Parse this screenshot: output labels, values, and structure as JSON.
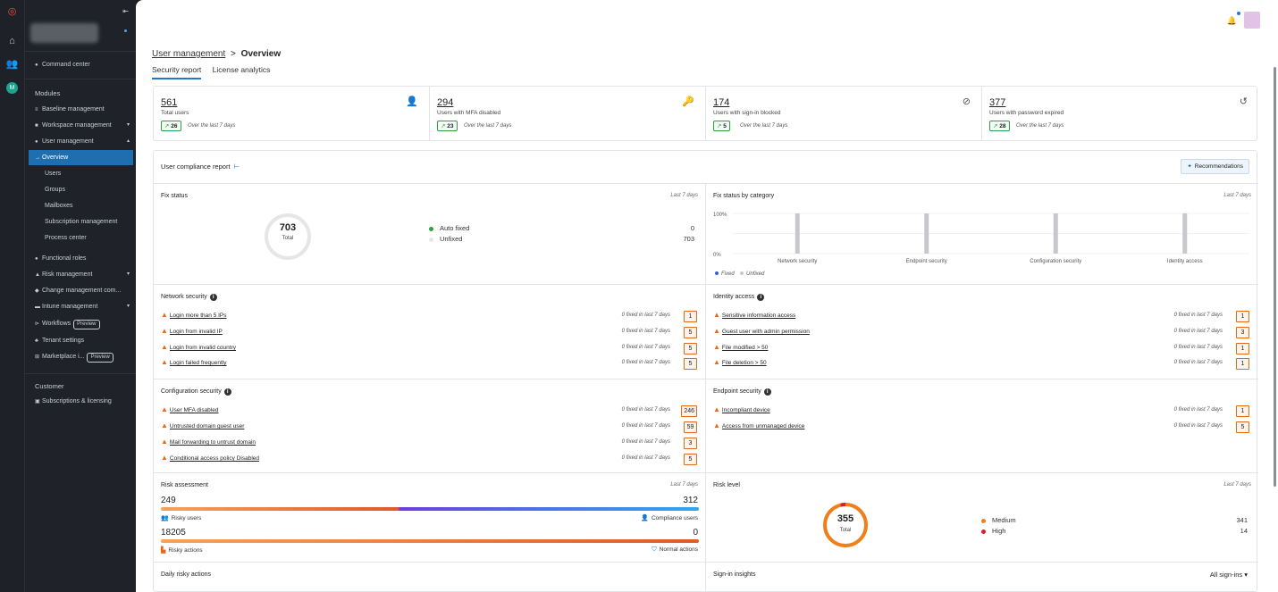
{
  "rail": {
    "icons": [
      "logo-icon",
      "home-icon",
      "users-icon",
      "avatar-icon"
    ],
    "avatar_letter": "M"
  },
  "sidebar": {
    "command_center": "Command center",
    "modules_heading": "Modules",
    "items": [
      {
        "label": "Baseline management",
        "arrow": ""
      },
      {
        "label": "Workspace management",
        "arrow": "▾"
      },
      {
        "label": "User management",
        "arrow": "▴"
      }
    ],
    "sub_items": [
      "Overview",
      "Users",
      "Groups",
      "Mailboxes",
      "Subscription management",
      "Process center"
    ],
    "items2": [
      {
        "label": "Functional roles",
        "arrow": ""
      },
      {
        "label": "Risk management",
        "arrow": "▾"
      },
      {
        "label": "Change management com...",
        "arrow": ""
      },
      {
        "label": "Intune management",
        "arrow": "▾"
      },
      {
        "label": "Workflows",
        "arrow": "",
        "badge": "Preview"
      },
      {
        "label": "Tenant settings",
        "arrow": ""
      },
      {
        "label": "Marketplace i...",
        "arrow": "",
        "badge": "Preview"
      }
    ],
    "customer_heading": "Customer",
    "subscriptions": "Subscriptions & licensing"
  },
  "breadcrumb": {
    "parent": "User management",
    "current": "Overview",
    "sep": ">"
  },
  "tabs": [
    "Security report",
    "License analytics"
  ],
  "stats": [
    {
      "value": "561",
      "label": "Total users",
      "delta": "26",
      "period": "Over the last 7 days",
      "icon": "user-icon"
    },
    {
      "value": "294",
      "label": "Users with MFA disabled",
      "delta": "23",
      "period": "Over the last 7 days",
      "icon": "key-icon"
    },
    {
      "value": "174",
      "label": "Users with sign-in blocked",
      "delta": "5",
      "period": "Over the last 7 days",
      "icon": "user-blocked-icon"
    },
    {
      "value": "377",
      "label": "Users with password expired",
      "delta": "28",
      "period": "Over the last 7 days",
      "icon": "history-icon"
    }
  ],
  "report": {
    "title": "User compliance report",
    "recommendations": "Recommendations",
    "fix_status": {
      "title": "Fix status",
      "period": "Last 7 days",
      "total": "703",
      "total_label": "Total",
      "legend": [
        {
          "label": "Auto fixed",
          "value": "0",
          "color": "#2e9e4a"
        },
        {
          "label": "Unfixed",
          "value": "703",
          "color": "#e6e6e6"
        }
      ]
    },
    "fix_by_category": {
      "title": "Fix status by category",
      "period": "Last 7 days"
    },
    "chart_data": {
      "type": "bar",
      "categories": [
        "Network security",
        "Endpoint security",
        "Configuration security",
        "Identity access"
      ],
      "series": [
        {
          "name": "Fixed",
          "values": [
            0,
            0,
            0,
            0
          ],
          "color": "#3b5bdb"
        },
        {
          "name": "Unfixed",
          "values": [
            100,
            100,
            100,
            100
          ],
          "color": "#c6c8cc"
        }
      ],
      "ylabel": "",
      "ylim": [
        0,
        100
      ],
      "ytick_labels": [
        "100%",
        "0%"
      ],
      "legend": "bottom-left",
      "grid": true
    },
    "network": {
      "title": "Network security",
      "items": [
        {
          "label": "Login more than 5 IPs",
          "fixed": "0 fixed in last 7 days",
          "count": "1"
        },
        {
          "label": "Login from invalid IP",
          "fixed": "0 fixed in last 7 days",
          "count": "5"
        },
        {
          "label": "Login from invalid country",
          "fixed": "0 fixed in last 7 days",
          "count": "5"
        },
        {
          "label": "Login failed frequently",
          "fixed": "0 fixed in last 7 days",
          "count": "5"
        }
      ]
    },
    "identity": {
      "title": "Identity access",
      "items": [
        {
          "label": "Sensitive information access",
          "fixed": "0 fixed in last 7 days",
          "count": "1"
        },
        {
          "label": "Guest user with admin permission",
          "fixed": "0 fixed in last 7 days",
          "count": "3"
        },
        {
          "label": "File modified > 50",
          "fixed": "0 fixed in last 7 days",
          "count": "1"
        },
        {
          "label": "File deletion > 50",
          "fixed": "0 fixed in last 7 days",
          "count": "1"
        }
      ]
    },
    "configuration": {
      "title": "Configuration security",
      "items": [
        {
          "label": "User MFA disabled",
          "fixed": "0 fixed in last 7 days",
          "count": "246"
        },
        {
          "label": "Untrusted domain guest user",
          "fixed": "0 fixed in last 7 days",
          "count": "59"
        },
        {
          "label": "Mail forwarding to untrust domain",
          "fixed": "0 fixed in last 7 days",
          "count": "3"
        },
        {
          "label": "Conditional access policy Disabled",
          "fixed": "0 fixed in last 7 days",
          "count": "5"
        }
      ]
    },
    "endpoint": {
      "title": "Endpoint security",
      "items": [
        {
          "label": "Incompliant device",
          "fixed": "0 fixed in last 7 days",
          "count": "1"
        },
        {
          "label": "Access from unmanaged device",
          "fixed": "0 fixed in last 7 days",
          "count": "5"
        }
      ]
    },
    "risk_assessment": {
      "title": "Risk assessment",
      "period": "Last 7 days",
      "risky_users": "249",
      "compliance_users": "312",
      "risky_users_label": "Risky users",
      "compliance_users_label": "Compliance users",
      "risky_actions": "18205",
      "normal_actions": "0",
      "risky_actions_label": "Risky actions",
      "normal_actions_label": "Normal actions"
    },
    "risk_level": {
      "title": "Risk level",
      "period": "Last 7 days",
      "total": "355",
      "total_label": "Total",
      "legend": [
        {
          "label": "Medium",
          "value": "341",
          "color": "#f07f1a"
        },
        {
          "label": "High",
          "value": "14",
          "color": "#d8202a"
        }
      ]
    },
    "daily_risky": {
      "title": "Daily risky actions"
    },
    "signin": {
      "title": "Sign-in insights",
      "filter": "All sign-ins"
    }
  }
}
